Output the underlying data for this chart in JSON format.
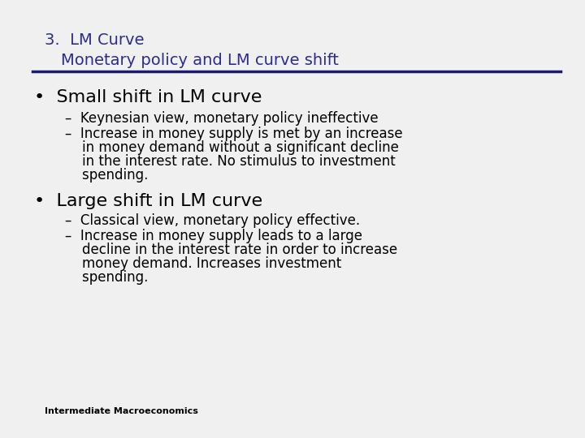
{
  "title_line1": "3.  LM Curve",
  "title_line2": "Monetary policy and LM curve shift",
  "title_color": "#2d2d8b",
  "bg_color": "#f0f0f0",
  "line_color": "#1a1a6e",
  "bullet1_header": "Small shift in LM curve",
  "bullet1_sub1": "–  Keynesian view, monetary policy ineffective",
  "bullet1_sub2_line1": "–  Increase in money supply is met by an increase",
  "bullet1_sub2_line2": "    in money demand without a significant decline",
  "bullet1_sub2_line3": "    in the interest rate. No stimulus to investment",
  "bullet1_sub2_line4": "    spending.",
  "bullet2_header": "Large shift in LM curve",
  "bullet2_sub1": "–  Classical view, monetary policy effective.",
  "bullet2_sub2_line1": "–  Increase in money supply leads to a large",
  "bullet2_sub2_line2": "    decline in the interest rate in order to increase",
  "bullet2_sub2_line3": "    money demand. Increases investment",
  "bullet2_sub2_line4": "    spending.",
  "footer": "Intermediate Macroeconomics",
  "title_fontsize": 14,
  "bullet_header_fontsize": 16,
  "bullet_sub_fontsize": 12,
  "footer_fontsize": 8
}
